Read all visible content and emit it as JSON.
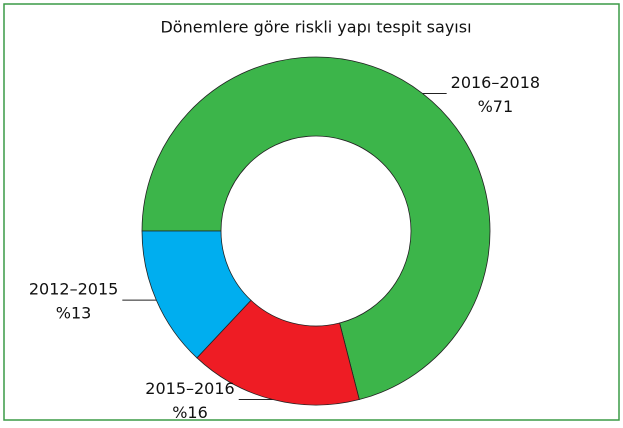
{
  "chart_data": {
    "type": "donut",
    "title": "Dönemlere göre riskli yapı tespit sayısı",
    "categories": [
      "2016–2018",
      "2015–2016",
      "2012–2015"
    ],
    "values": [
      71,
      16,
      13
    ],
    "value_labels": [
      "%71",
      "%16",
      "%13"
    ],
    "colors": [
      "#3cb54a",
      "#ee1c24",
      "#00aeef"
    ]
  }
}
